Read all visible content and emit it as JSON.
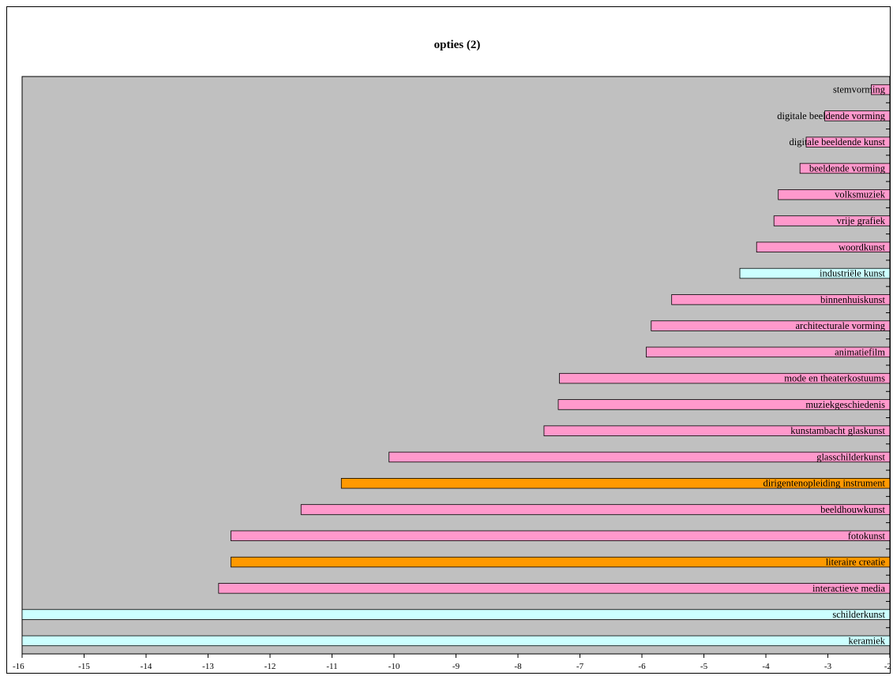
{
  "chart_data": {
    "type": "bar",
    "orientation": "horizontal",
    "title": "opties (2)",
    "xlabel": "",
    "ylabel": "",
    "xlim": [
      -16,
      -2
    ],
    "xticks": [
      "-16",
      "-15",
      "-14",
      "-13",
      "-12",
      "-11",
      "-10",
      "-9",
      "-8",
      "-7",
      "-6",
      "-5",
      "-4",
      "-3",
      "-2"
    ],
    "grid": false,
    "legend": "none",
    "plot_background": "#c0c0c0",
    "colors": {
      "pink": "#ff99cc",
      "orange": "#ff9900",
      "cyan": "#ccffff",
      "frame": "#000000"
    },
    "bars": [
      {
        "label": "stemvorming",
        "value": -2.3,
        "color": "pink"
      },
      {
        "label": "digitale beeldende vorming",
        "value": -3.05,
        "color": "pink"
      },
      {
        "label": "digitale beeldende kunst",
        "value": -3.35,
        "color": "pink"
      },
      {
        "label": "beeldende vorming",
        "value": -3.45,
        "color": "pink"
      },
      {
        "label": "volksmuziek",
        "value": -3.8,
        "color": "pink"
      },
      {
        "label": "vrije grafiek",
        "value": -3.87,
        "color": "pink"
      },
      {
        "label": "woordkunst",
        "value": -4.15,
        "color": "pink"
      },
      {
        "label": "industriële kunst",
        "value": -4.42,
        "color": "cyan"
      },
      {
        "label": "binnenhuiskunst",
        "value": -5.52,
        "color": "pink"
      },
      {
        "label": "architecturale vorming",
        "value": -5.85,
        "color": "pink"
      },
      {
        "label": "animatiefilm",
        "value": -5.93,
        "color": "pink"
      },
      {
        "label": "mode en theaterkostuums",
        "value": -7.33,
        "color": "pink"
      },
      {
        "label": "muziekgeschiedenis",
        "value": -7.35,
        "color": "pink"
      },
      {
        "label": "kunstambacht  glaskunst",
        "value": -7.58,
        "color": "pink"
      },
      {
        "label": "glasschilderkunst",
        "value": -10.08,
        "color": "pink"
      },
      {
        "label": "dirigentenopleiding instrument",
        "value": -10.85,
        "color": "orange"
      },
      {
        "label": "beeldhouwkunst",
        "value": -11.5,
        "color": "pink"
      },
      {
        "label": "fotokunst",
        "value": -12.63,
        "color": "pink"
      },
      {
        "label": "literaire creatie",
        "value": -12.63,
        "color": "orange"
      },
      {
        "label": "interactieve media",
        "value": -12.83,
        "color": "pink"
      },
      {
        "label": "schilderkunst",
        "value": -16,
        "color": "cyan"
      },
      {
        "label": "keramiek",
        "value": -16,
        "color": "cyan"
      }
    ]
  }
}
